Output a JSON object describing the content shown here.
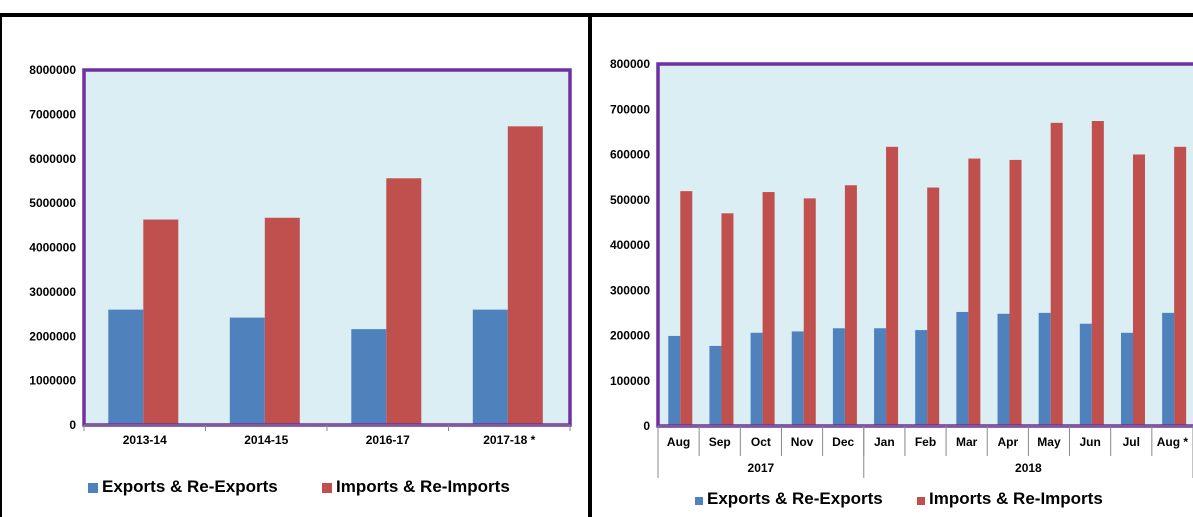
{
  "chart_data": [
    {
      "type": "bar",
      "categories": [
        "2013-14",
        "2014-15",
        "2016-17",
        "2017-18 *"
      ],
      "series": [
        {
          "name": "Exports & Re-Exports",
          "values": [
            2600000,
            2420000,
            2160000,
            2600000
          ]
        },
        {
          "name": "Imports & Re-Imports",
          "values": [
            4630000,
            4670000,
            5560000,
            6730000
          ]
        }
      ],
      "yticks": [
        "0",
        "1000000",
        "2000000",
        "3000000",
        "4000000",
        "5000000",
        "6000000",
        "7000000",
        "8000000"
      ],
      "ylim": [
        0,
        8000000
      ],
      "legend_position": "bottom",
      "grid": false,
      "colors": {
        "exports": "#4f81bd",
        "imports": "#c0504d",
        "plot_background": "#daeef3",
        "plot_border": "#7030a0"
      }
    },
    {
      "type": "bar",
      "categories": [
        "Aug",
        "Sep",
        "Oct",
        "Nov",
        "Dec",
        "Jan",
        "Feb",
        "Mar",
        "Apr",
        "May",
        "Jun",
        "Jul",
        "Aug *"
      ],
      "groups": [
        {
          "label": "2017",
          "count": 5
        },
        {
          "label": "2018",
          "count": 8
        }
      ],
      "series": [
        {
          "name": "Exports & Re-Exports",
          "values": [
            199000,
            177000,
            206000,
            209000,
            216000,
            216000,
            212000,
            252000,
            248000,
            250000,
            226000,
            206000,
            250000
          ]
        },
        {
          "name": "Imports & Re-Imports",
          "values": [
            519000,
            470000,
            517000,
            503000,
            532000,
            617000,
            527000,
            591000,
            588000,
            670000,
            674000,
            600000,
            617000
          ]
        }
      ],
      "yticks": [
        "0",
        "100000",
        "200000",
        "300000",
        "400000",
        "500000",
        "600000",
        "700000",
        "800000"
      ],
      "ylim": [
        0,
        800000
      ],
      "legend_position": "bottom",
      "grid": false,
      "colors": {
        "exports": "#4f81bd",
        "imports": "#c0504d",
        "plot_background": "#daeef3",
        "plot_border": "#7030a0"
      }
    }
  ]
}
